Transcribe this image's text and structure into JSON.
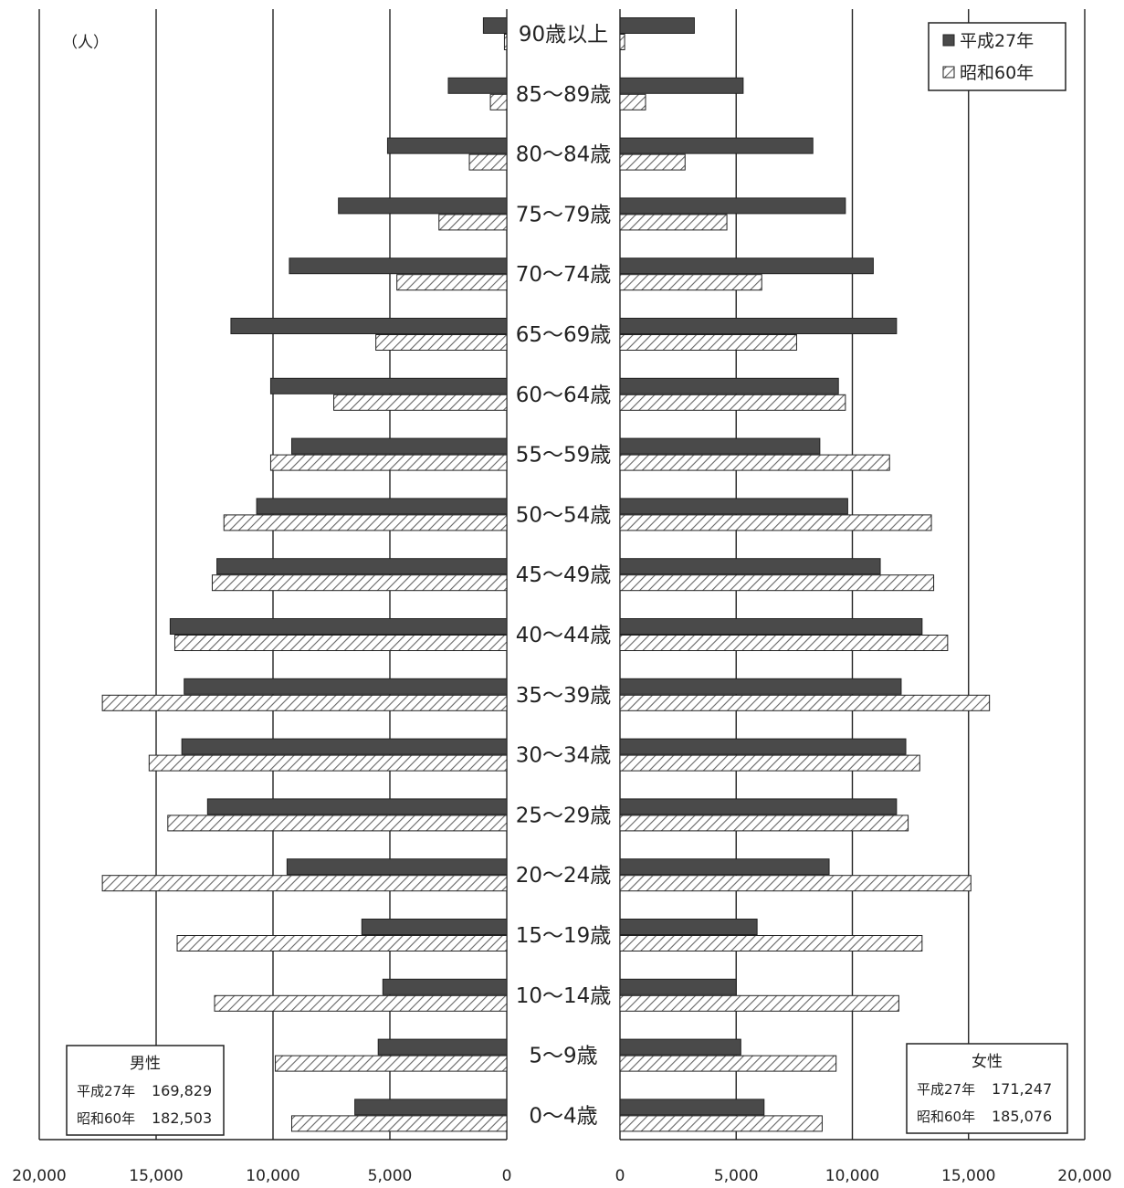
{
  "chart_data": {
    "type": "bar",
    "orientation": "horizontal",
    "layout": "population-pyramid",
    "unit": "（人）",
    "categories": [
      "90歳以上",
      "85～89歳",
      "80～84歳",
      "75～79歳",
      "70～74歳",
      "65～69歳",
      "60～64歳",
      "55～59歳",
      "50～54歳",
      "45～49歳",
      "40～44歳",
      "35～39歳",
      "30～34歳",
      "25～29歳",
      "20～24歳",
      "15～19歳",
      "10～14歳",
      "5～9歳",
      "0～4歳"
    ],
    "series": [
      {
        "name": "平成27年",
        "style": "solid",
        "color": "#4a4a4a",
        "male": [
          1000,
          2500,
          5100,
          7200,
          9300,
          11800,
          10100,
          9200,
          10700,
          12400,
          14400,
          13800,
          13900,
          12800,
          9400,
          6200,
          5300,
          5500,
          6500
        ],
        "female": [
          3200,
          5300,
          8300,
          9700,
          10900,
          11900,
          9400,
          8600,
          9800,
          11200,
          13000,
          12100,
          12300,
          11900,
          9000,
          5900,
          5000,
          5200,
          6200
        ]
      },
      {
        "name": "昭和60年",
        "style": "hatched",
        "color": "#888888",
        "male": [
          100,
          700,
          1600,
          2900,
          4700,
          5600,
          7400,
          10100,
          12100,
          12600,
          14200,
          17300,
          15300,
          14500,
          17300,
          14100,
          12500,
          9900,
          9200
        ],
        "female": [
          200,
          1100,
          2800,
          4600,
          6100,
          7600,
          9700,
          11600,
          13400,
          13500,
          14100,
          15900,
          12900,
          12400,
          15100,
          13000,
          12000,
          9300,
          8700
        ]
      }
    ],
    "axis": {
      "male_ticks": [
        "20,000",
        "15,000",
        "10,000",
        "5,000",
        "0"
      ],
      "female_ticks": [
        "0",
        "5,000",
        "10,000",
        "15,000",
        "20,000"
      ],
      "range": [
        0,
        20000
      ],
      "grid": true
    },
    "legend": {
      "position": "top-right",
      "items": [
        "平成27年",
        "昭和60年"
      ]
    },
    "totals": {
      "male": {
        "title": "男性",
        "rows": [
          {
            "label": "平成27年",
            "value": "169,829"
          },
          {
            "label": "昭和60年",
            "value": "182,503"
          }
        ]
      },
      "female": {
        "title": "女性",
        "rows": [
          {
            "label": "平成27年",
            "value": "171,247"
          },
          {
            "label": "昭和60年",
            "value": "185,076"
          }
        ]
      }
    }
  }
}
